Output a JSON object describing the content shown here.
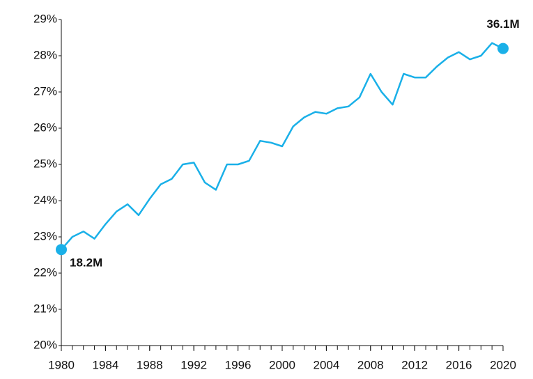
{
  "chart_data": {
    "type": "line",
    "x": [
      1980,
      1981,
      1982,
      1983,
      1984,
      1985,
      1986,
      1987,
      1988,
      1989,
      1990,
      1991,
      1992,
      1993,
      1994,
      1995,
      1996,
      1997,
      1998,
      1999,
      2000,
      2001,
      2002,
      2003,
      2004,
      2005,
      2006,
      2007,
      2008,
      2009,
      2010,
      2011,
      2012,
      2013,
      2014,
      2015,
      2016,
      2017,
      2018,
      2019,
      2020
    ],
    "series": [
      {
        "color": "#1ab0e8",
        "values": [
          22.65,
          23.0,
          23.15,
          22.95,
          23.35,
          23.7,
          23.9,
          23.6,
          24.05,
          24.45,
          24.6,
          25.0,
          25.05,
          24.5,
          24.3,
          25.0,
          25.0,
          25.1,
          25.65,
          25.6,
          25.5,
          26.05,
          26.3,
          26.45,
          26.4,
          26.55,
          26.6,
          26.85,
          27.5,
          27.0,
          26.65,
          27.5,
          27.4,
          27.4,
          27.7,
          27.95,
          28.1,
          27.9,
          28.0,
          28.35,
          28.2
        ]
      }
    ],
    "annotations": [
      {
        "text": "18.2M",
        "x": 1980
      },
      {
        "text": "36.1M",
        "x": 2020
      }
    ],
    "xlim": [
      1980,
      2020
    ],
    "xticks": [
      1980,
      1984,
      1988,
      1992,
      1996,
      2000,
      2004,
      2008,
      2012,
      2016,
      2020
    ],
    "ylim": [
      20,
      29
    ],
    "yticks": [
      {
        "value": 20,
        "label": "20%"
      },
      {
        "value": 21,
        "label": "21%"
      },
      {
        "value": 22,
        "label": "22%"
      },
      {
        "value": 23,
        "label": "23%"
      },
      {
        "value": 24,
        "label": "24%"
      },
      {
        "value": 25,
        "label": "25%"
      },
      {
        "value": 26,
        "label": "26%"
      },
      {
        "value": 27,
        "label": "27%"
      },
      {
        "value": 28,
        "label": "28%"
      },
      {
        "value": 29,
        "label": "29%"
      }
    ],
    "grid": false
  }
}
